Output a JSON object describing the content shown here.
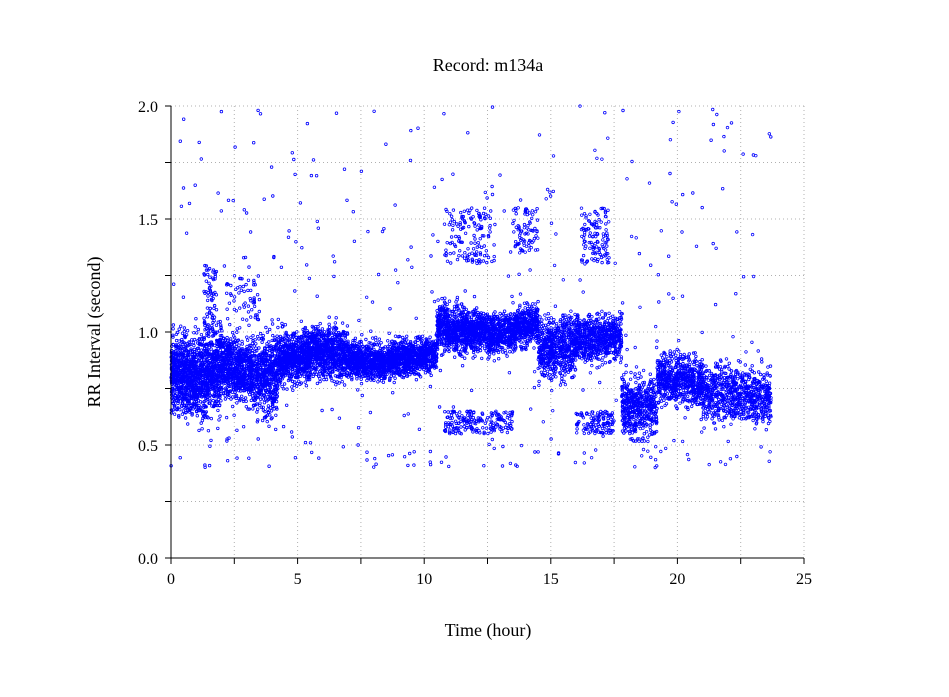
{
  "chart_data": {
    "type": "scatter",
    "title": "Record:  m134a",
    "xlabel": "Time (hour)",
    "ylabel": "RR Interval (second)",
    "xlim": [
      0,
      25
    ],
    "ylim": [
      0,
      2.0
    ],
    "xticks": [
      0,
      5,
      10,
      15,
      20,
      25
    ],
    "xtick_labels": [
      "0",
      "5",
      "10",
      "15",
      "20",
      "25"
    ],
    "yticks": [
      0.0,
      0.5,
      1.0,
      1.5,
      2.0
    ],
    "ytick_labels": [
      "0.0",
      "0.5",
      "1.0",
      "1.5",
      "2.0"
    ],
    "grid": true,
    "marker_color": "#0000ff",
    "series": [
      {
        "segments": [
          {
            "x": [
              0.0,
              1.0
            ],
            "center": [
              0.82,
              0.8
            ],
            "spread": 0.14,
            "density": 700
          },
          {
            "x": [
              1.0,
              2.0
            ],
            "center": [
              0.8,
              0.85
            ],
            "spread": 0.17,
            "density": 650
          },
          {
            "x": [
              2.0,
              3.2
            ],
            "center": [
              0.85,
              0.83
            ],
            "spread": 0.12,
            "density": 650
          },
          {
            "x": [
              3.2,
              4.2
            ],
            "center": [
              0.8,
              0.82
            ],
            "spread": 0.15,
            "density": 500
          },
          {
            "x": [
              4.2,
              5.5
            ],
            "center": [
              0.88,
              0.9
            ],
            "spread": 0.1,
            "density": 700
          },
          {
            "x": [
              5.5,
              7.0
            ],
            "center": [
              0.92,
              0.9
            ],
            "spread": 0.1,
            "density": 750
          },
          {
            "x": [
              7.0,
              8.5
            ],
            "center": [
              0.88,
              0.86
            ],
            "spread": 0.07,
            "density": 700
          },
          {
            "x": [
              8.5,
              10.5
            ],
            "center": [
              0.88,
              0.9
            ],
            "spread": 0.07,
            "density": 850
          },
          {
            "x": [
              10.5,
              12.5
            ],
            "center": [
              1.02,
              1.0
            ],
            "spread": 0.09,
            "density": 900
          },
          {
            "x": [
              12.5,
              14.5
            ],
            "center": [
              0.98,
              1.04
            ],
            "spread": 0.08,
            "density": 850
          },
          {
            "x": [
              14.5,
              16.0
            ],
            "center": [
              0.92,
              0.95
            ],
            "spread": 0.12,
            "density": 650
          },
          {
            "x": [
              16.0,
              17.8
            ],
            "center": [
              0.97,
              0.98
            ],
            "spread": 0.09,
            "density": 700
          },
          {
            "x": [
              17.8,
              19.2
            ],
            "center": [
              0.68,
              0.65
            ],
            "spread": 0.12,
            "density": 500
          },
          {
            "x": [
              19.2,
              21.0
            ],
            "center": [
              0.8,
              0.78
            ],
            "spread": 0.1,
            "density": 650
          },
          {
            "x": [
              21.0,
              23.7
            ],
            "center": [
              0.74,
              0.71
            ],
            "spread": 0.11,
            "density": 750
          }
        ],
        "clusters": [
          {
            "x": [
              10.8,
              12.8
            ],
            "y": [
              1.3,
              1.55
            ],
            "density": 140
          },
          {
            "x": [
              13.5,
              14.5
            ],
            "y": [
              1.35,
              1.55
            ],
            "density": 80
          },
          {
            "x": [
              16.2,
              17.3
            ],
            "y": [
              1.3,
              1.55
            ],
            "density": 120
          },
          {
            "x": [
              10.8,
              13.5
            ],
            "y": [
              0.55,
              0.65
            ],
            "density": 180
          },
          {
            "x": [
              16.0,
              17.5
            ],
            "y": [
              0.55,
              0.65
            ],
            "density": 120
          },
          {
            "x": [
              1.3,
              1.8
            ],
            "y": [
              1.0,
              1.3
            ],
            "density": 70
          },
          {
            "x": [
              2.2,
              3.5
            ],
            "y": [
              1.05,
              1.25
            ],
            "density": 60
          }
        ],
        "outliers": {
          "x": [
            0.0,
            23.7
          ],
          "y": [
            0.4,
            2.0
          ],
          "density": 420
        }
      }
    ]
  }
}
